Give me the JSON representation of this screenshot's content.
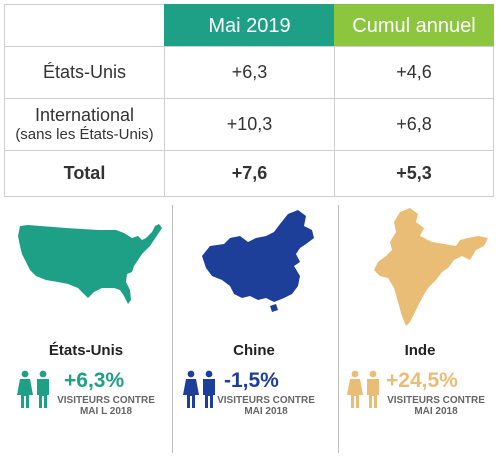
{
  "table": {
    "header": {
      "col1": "Mai 2019",
      "col2": "Cumul annuel"
    },
    "rows": [
      {
        "label": "États-Unis",
        "sublabel": "",
        "val1": "+6,3",
        "val2": "+4,6"
      },
      {
        "label": "International",
        "sublabel": "(sans les États-Unis)",
        "val1": "+10,3",
        "val2": "+6,8"
      },
      {
        "label": "Total",
        "sublabel": "",
        "val1": "+7,6",
        "val2": "+5,3"
      }
    ]
  },
  "panels": [
    {
      "country": "États-Unis",
      "change": "+6,3%",
      "note_line1": "VISITEURS CONTRE",
      "note_line2": "MAI L 2018",
      "color": "#1ea086",
      "icon": "usa-map-icon"
    },
    {
      "country": "Chine",
      "change": "-1,5%",
      "note_line1": "VISITEURS CONTRE",
      "note_line2": "MAI 2018",
      "color": "#1d3f9a",
      "icon": "china-map-icon"
    },
    {
      "country": "Inde",
      "change": "+24,5%",
      "note_line1": "VISITEURS CONTRE",
      "note_line2": "MAI 2018",
      "color": "#e9bd75",
      "icon": "india-map-icon"
    }
  ],
  "colors": {
    "header_may": "#1ea086",
    "header_ytd": "#8cc63f",
    "border": "#cfcfcf"
  }
}
